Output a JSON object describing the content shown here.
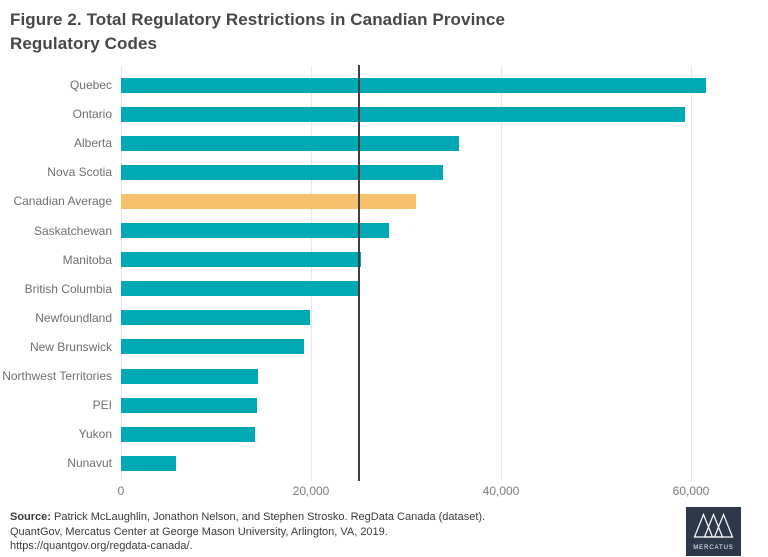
{
  "figure": {
    "title_lines": [
      "Figure 2. Total Regulatory Restrictions in Canadian Province",
      "Regulatory Codes"
    ],
    "title_full": "Figure 2. Total Regulatory Restrictions in Canadian Province Regulatory Codes"
  },
  "chart_data": {
    "type": "bar",
    "orientation": "horizontal",
    "title": "Figure 2. Total Regulatory Restrictions in Canadian Province Regulatory Codes",
    "xlabel": "",
    "ylabel": "",
    "categories": [
      "Quebec",
      "Ontario",
      "Alberta",
      "Nova Scotia",
      "Canadian Average",
      "Saskatchewan",
      "Manitoba",
      "British Columbia",
      "Newfoundland",
      "New Brunswick",
      "Northwest Territories",
      "PEI",
      "Yukon",
      "Nunavut"
    ],
    "values": [
      61600,
      59400,
      35600,
      33900,
      31100,
      28200,
      25300,
      25000,
      19900,
      19300,
      14400,
      14300,
      14100,
      5800
    ],
    "highlight_category": "Canadian Average",
    "bar_color": "#00a9b4",
    "highlight_color": "#f6c16b",
    "reference_line": {
      "value": 25000,
      "color": "#3f3f3f"
    },
    "x_ticks": [
      0,
      20000,
      40000,
      60000
    ],
    "x_tick_labels": [
      "0",
      "20,000",
      "40,000",
      "60,000"
    ],
    "xlim": [
      0,
      68000
    ],
    "grid": true,
    "legend": "none"
  },
  "footer": {
    "source_label": "Source:",
    "source_rest": " Patrick McLaughlin, Jonathon Nelson, and Stephen Strosko. RegData Canada (dataset).",
    "line2": "QuantGov, Mercatus Center at George Mason University, Arlington, VA, 2019.",
    "line3": "https://quantgov.org/regdata-canada/.",
    "logo_text": "MERCATUS"
  },
  "colors": {
    "teal": "#00a9b4",
    "orange": "#f6c16b",
    "title_text": "#474747",
    "axis_text": "#7d7d7d",
    "label_text": "#6f6f6f",
    "gridline": "#e7e7e7",
    "reference_line": "#3f3f3f",
    "logo_background": "#2c3849"
  }
}
